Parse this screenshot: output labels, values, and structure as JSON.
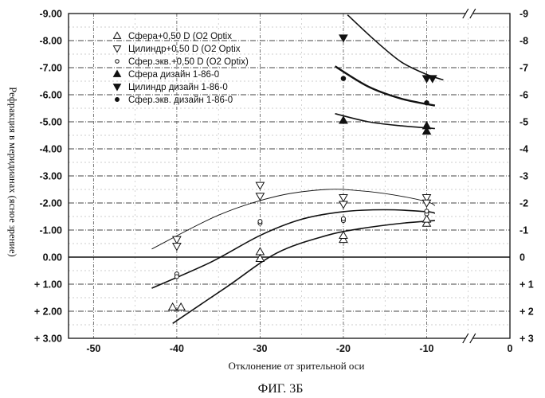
{
  "chart_data": {
    "type": "scatter",
    "xlabel": "Отклонение от зрительной оси",
    "ylabel": "Рефракция в меридианах (ясное зрение)",
    "caption": "ФИГ. 3Б",
    "xlim": [
      -53,
      0
    ],
    "ylim": [
      -9,
      3
    ],
    "y_inverted": true,
    "grid": true,
    "legend_position": "top-center",
    "x_ticks": [
      "-50",
      "-40",
      "-30",
      "-20",
      "-10",
      "0"
    ],
    "y_ticks_left": [
      "-9.00",
      "-8.00",
      "-7.00",
      "-6.00",
      "-5.00",
      "-4.00",
      "-3.00",
      "-2.00",
      "-1.00",
      "0.00",
      "+ 1.00",
      "+ 2.00",
      "+ 3.00"
    ],
    "y_ticks_right": [
      "-9",
      "-8",
      "-7",
      "-6",
      "-5",
      "-4",
      "-3",
      "-2",
      "-1",
      "0",
      "+ 1",
      "+ 2",
      "+ 3"
    ],
    "series": [
      {
        "name": "Сфера+0,50 D (O2 Optix",
        "marker": "triangle-up-open",
        "points": [
          [
            -40.5,
            1.85
          ],
          [
            -39.5,
            1.85
          ],
          [
            -30,
            -0.2
          ],
          [
            -30,
            0.05
          ],
          [
            -20,
            -0.65
          ],
          [
            -20,
            -0.8
          ],
          [
            -10,
            -1.25
          ],
          [
            -10,
            -1.4
          ]
        ]
      },
      {
        "name": "Цилиндр+0,50 D (O2 Optix",
        "marker": "triangle-down-open",
        "points": [
          [
            -40,
            -0.65
          ],
          [
            -40,
            -0.4
          ],
          [
            -30,
            -2.65
          ],
          [
            -30,
            -2.25
          ],
          [
            -20,
            -2.2
          ],
          [
            -20,
            -1.95
          ],
          [
            -10,
            -2.2
          ],
          [
            -10,
            -2.0
          ]
        ]
      },
      {
        "name": "Сфер.экв.+0,50 D (O2 Optix)",
        "marker": "circle-open",
        "points": [
          [
            -40,
            0.62
          ],
          [
            -40,
            0.72
          ],
          [
            -30,
            -1.25
          ],
          [
            -30,
            -1.32
          ],
          [
            -20,
            -1.35
          ],
          [
            -20,
            -1.42
          ],
          [
            -10,
            -1.6
          ],
          [
            -10,
            -1.7
          ]
        ]
      },
      {
        "name": "Сфера дизайн 1-86-0",
        "marker": "triangle-up-filled",
        "points": [
          [
            -20,
            -5.05
          ],
          [
            -10,
            -4.85
          ],
          [
            -10,
            -4.65
          ]
        ]
      },
      {
        "name": "Цилиндр дизайн 1-86-0",
        "marker": "triangle-down-filled",
        "points": [
          [
            -20,
            -8.1
          ],
          [
            -10,
            -6.6
          ],
          [
            -9.3,
            -6.6
          ]
        ]
      },
      {
        "name": "Сфер.экв. дизайн 1-86-0",
        "marker": "circle-filled",
        "points": [
          [
            -20,
            -6.6
          ],
          [
            -10,
            -5.7
          ]
        ]
      }
    ],
    "curves": [
      {
        "style": "thin",
        "x": [
          -43,
          -35,
          -28,
          -22,
          -18,
          -14,
          -10,
          -9
        ],
        "y": [
          -0.3,
          -1.55,
          -2.25,
          -2.5,
          -2.45,
          -2.3,
          -2.05,
          -1.9
        ]
      },
      {
        "style": "medium",
        "x": [
          -43,
          -36,
          -30,
          -25,
          -20,
          -15,
          -10,
          -9
        ],
        "y": [
          1.15,
          0.2,
          -0.8,
          -1.4,
          -1.68,
          -1.75,
          -1.68,
          -1.62
        ]
      },
      {
        "style": "medium",
        "x": [
          -40.5,
          -34,
          -28,
          -22,
          -18,
          -13,
          -9
        ],
        "y": [
          2.45,
          1.1,
          -0.15,
          -0.8,
          -1.05,
          -1.25,
          -1.35
        ]
      },
      {
        "style": "thick",
        "x": [
          -21,
          -17,
          -13,
          -9
        ],
        "y": [
          -7.05,
          -6.3,
          -5.85,
          -5.6
        ]
      },
      {
        "style": "medium",
        "x": [
          -21,
          -17,
          -13,
          -9
        ],
        "y": [
          -5.3,
          -5.0,
          -4.85,
          -4.75
        ]
      },
      {
        "style": "medium",
        "x": [
          -19.5,
          -16,
          -13,
          -10,
          -8
        ],
        "y": [
          -8.95,
          -7.95,
          -7.2,
          -6.75,
          -6.55
        ]
      }
    ]
  }
}
